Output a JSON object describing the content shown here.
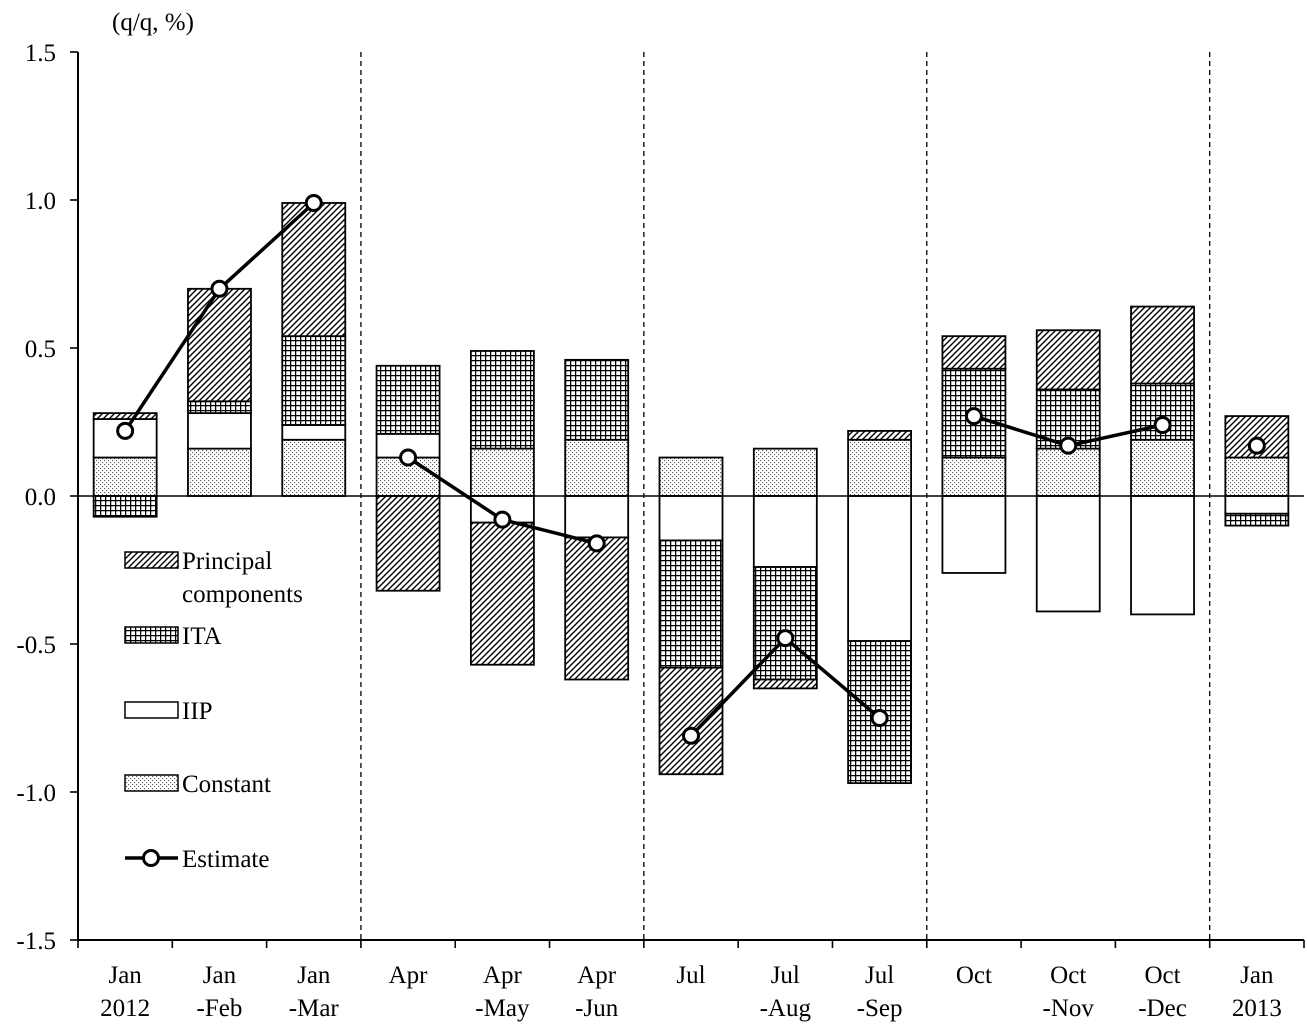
{
  "colors": {
    "bar_stroke": "#000000",
    "line": "#000000",
    "marker_fill": "#ffffff",
    "background": "#ffffff"
  },
  "chart_data": {
    "type": "bar",
    "subtype": "stacked bar with line overlay",
    "unit_label": "(q/q, %)",
    "ylim": [
      -1.5,
      1.5
    ],
    "yticks": [
      1.5,
      1.0,
      0.5,
      0.0,
      -0.5,
      -1.0,
      -1.5
    ],
    "ytick_labels": [
      "1.5",
      "1.0",
      "0.5",
      "0.0",
      "-0.5",
      "-1.0",
      "-1.5"
    ],
    "categories": [
      [
        "Jan",
        "2012"
      ],
      [
        "Jan",
        "-Feb"
      ],
      [
        "Jan",
        "-Mar"
      ],
      [
        "Apr",
        ""
      ],
      [
        "Apr",
        "-May"
      ],
      [
        "Apr",
        "-Jun"
      ],
      [
        "Jul",
        ""
      ],
      [
        "Jul",
        "-Aug"
      ],
      [
        "Jul",
        "-Sep"
      ],
      [
        "Oct",
        ""
      ],
      [
        "Oct",
        "-Nov"
      ],
      [
        "Oct",
        "-Dec"
      ],
      [
        "Jan",
        "2013"
      ]
    ],
    "group_separators_after": [
      3,
      6,
      9,
      12
    ],
    "series": [
      {
        "name": "Constant",
        "pattern": "dots",
        "values": [
          0.13,
          0.16,
          0.19,
          0.13,
          0.16,
          0.19,
          0.13,
          0.16,
          0.19,
          0.13,
          0.16,
          0.19,
          0.13
        ]
      },
      {
        "name": "IIP",
        "pattern": "blank",
        "values": [
          0.13,
          0.12,
          0.05,
          0.08,
          -0.09,
          -0.14,
          -0.15,
          -0.24,
          -0.49,
          -0.26,
          -0.39,
          -0.4,
          -0.06
        ]
      },
      {
        "name": "ITA",
        "pattern": "grid",
        "values": [
          -0.07,
          0.04,
          0.3,
          0.23,
          0.33,
          0.27,
          -0.43,
          -0.38,
          -0.48,
          0.3,
          0.2,
          0.19,
          -0.04
        ]
      },
      {
        "name": "Principal components",
        "pattern": "hatch",
        "values": [
          0.02,
          0.38,
          0.45,
          -0.32,
          -0.48,
          -0.48,
          -0.36,
          -0.03,
          0.03,
          0.11,
          0.2,
          0.26,
          0.14
        ]
      }
    ],
    "line": {
      "name": "Estimate",
      "values": [
        0.22,
        0.7,
        0.99,
        0.13,
        -0.08,
        -0.16,
        -0.81,
        -0.48,
        -0.75,
        0.27,
        0.17,
        0.24,
        0.17
      ]
    },
    "legend": {
      "placement": "left-middle",
      "items": [
        {
          "name": "Principal components",
          "lines": [
            "Principal",
            "components"
          ],
          "kind": "hatch"
        },
        {
          "name": "ITA",
          "lines": [
            "ITA"
          ],
          "kind": "grid"
        },
        {
          "name": "IIP",
          "lines": [
            "IIP"
          ],
          "kind": "blank"
        },
        {
          "name": "Constant",
          "lines": [
            "Constant"
          ],
          "kind": "dots"
        },
        {
          "name": "Estimate",
          "lines": [
            "Estimate"
          ],
          "kind": "line"
        }
      ]
    },
    "grid": false
  }
}
